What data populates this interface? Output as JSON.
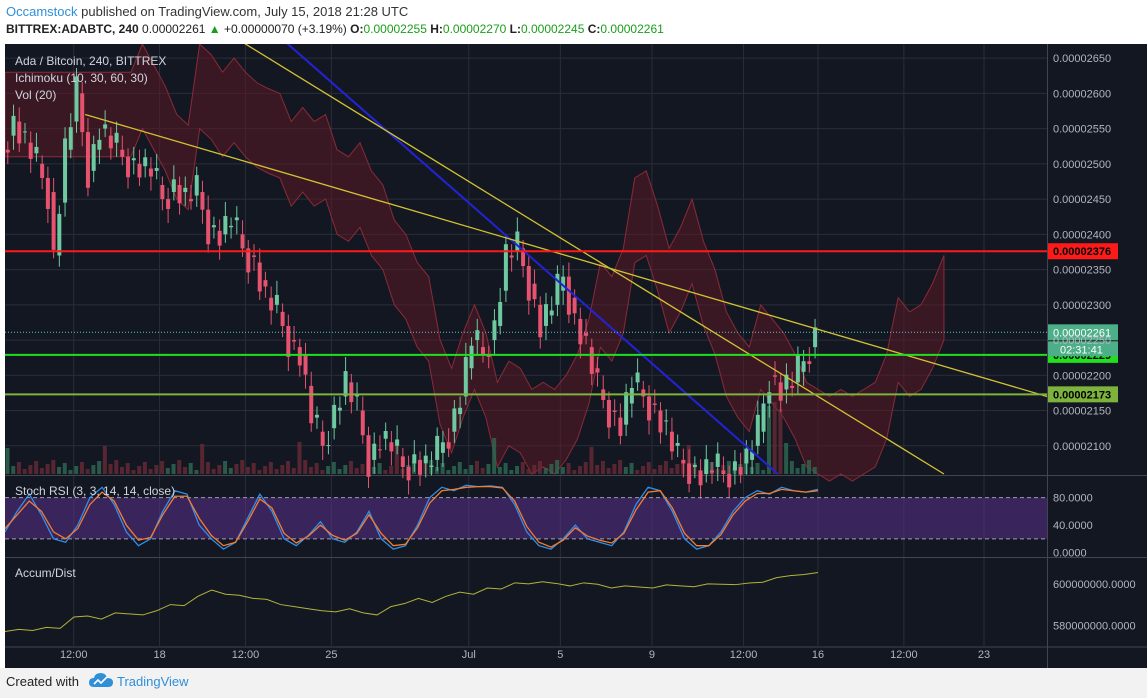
{
  "header": {
    "author": "Occamstock",
    "published_text": " published on TradingView.com, July 15, 2018 21:28 UTC",
    "symbol": "BITTREX:ADABTC, 240",
    "last": "0.00002261",
    "change": "+0.00000070 (+3.19%)",
    "o_label": "O:",
    "o": "0.00002255",
    "h_label": "H:",
    "h": "0.00002270",
    "l_label": "L:",
    "l": "0.00002245",
    "c_label": "C:",
    "c": "0.00002261"
  },
  "legend": {
    "pair": "Ada / Bitcoin, 240, BITTREX",
    "ichimoku": "Ichimoku (10, 30, 60, 30)",
    "vol": "Vol (20)",
    "stoch": "Stoch RSI (3, 3, 14, 14, close)",
    "accum": "Accum/Dist"
  },
  "colors": {
    "background": "#131722",
    "grid": "#2a2e39",
    "up_candle": "#6ec8a0",
    "down_candle": "#e7536f",
    "red_level": "#ff1a1a",
    "green_level": "#20e020",
    "olive_level": "#7db33c",
    "trendline_yellow": "#d4c232",
    "trendline_blue": "#2323d6",
    "stoch_k": "#2f8fea",
    "stoch_d": "#f57c30",
    "stoch_band": "#5b2f8c",
    "accum_line": "#b5b23a"
  },
  "footer": {
    "created_with": "Created with",
    "brand": "TradingView",
    "brand_icon": "tradingview-cloud-icon"
  },
  "chart_data": [
    {
      "type": "candlestick",
      "title": "Ada / Bitcoin, 240, BITTREX",
      "y_range": [
        2.06e-05,
        2.67e-05
      ],
      "y_ticks": [
        "0.00002650",
        "0.00002600",
        "0.00002550",
        "0.00002500",
        "0.00002450",
        "0.00002400",
        "0.00002350",
        "0.00002300",
        "0.00002250",
        "0.00002200",
        "0.00002150",
        "0.00002100"
      ],
      "y_tick_values": [
        2.65e-05,
        2.6e-05,
        2.55e-05,
        2.5e-05,
        2.45e-05,
        2.4e-05,
        2.35e-05,
        2.3e-05,
        2.25e-05,
        2.2e-05,
        2.15e-05,
        2.1e-05
      ],
      "x_ticks": [
        "12:00",
        "18",
        "12:00",
        "25",
        "Jul",
        "5",
        "9",
        "12:00",
        "16",
        "12:00",
        "23"
      ],
      "x_tick_index": [
        12,
        27,
        42,
        57,
        81,
        97,
        113,
        129,
        142,
        157,
        171
      ],
      "x_range": [
        0,
        182
      ],
      "current_price_label": "0.00002261",
      "countdown_label": "02:31:41",
      "levels": [
        {
          "label": "0.00002376",
          "value": 2.376e-05,
          "color": "#ff1a1a"
        },
        {
          "label": "0.00002229",
          "value": 2.229e-05,
          "color": "#20e020"
        },
        {
          "label": "0.00002173",
          "value": 2.173e-05,
          "color": "#7db33c"
        }
      ],
      "current_price_value": 2.261e-05,
      "trendlines": [
        {
          "color": "#2323d6",
          "from": [
            48,
            2.68e-05
          ],
          "to": [
            135,
            2.06e-05
          ]
        },
        {
          "color": "#d4c232",
          "from": [
            40,
            2.68e-05
          ],
          "to": [
            164,
            2.06e-05
          ]
        },
        {
          "color": "#d4c232",
          "from": [
            14,
            2.57e-05
          ],
          "to": [
            182,
            2.17e-05
          ]
        }
      ],
      "close_path": [
        [
          0,
          2.52e-05
        ],
        [
          2,
          2.56e-05
        ],
        [
          4,
          2.53e-05
        ],
        [
          6,
          2.5e-05
        ],
        [
          8,
          2.46e-05
        ],
        [
          9,
          2.37e-05
        ],
        [
          11,
          2.52e-05
        ],
        [
          13,
          2.6e-05
        ],
        [
          15,
          2.49e-05
        ],
        [
          17,
          2.55e-05
        ],
        [
          19,
          2.53e-05
        ],
        [
          21,
          2.51e-05
        ],
        [
          23,
          2.5e-05
        ],
        [
          26,
          2.49e-05
        ],
        [
          28,
          2.45e-05
        ],
        [
          30,
          2.47e-05
        ],
        [
          32,
          2.45e-05
        ],
        [
          34,
          2.46e-05
        ],
        [
          36,
          2.41e-05
        ],
        [
          38,
          2.4e-05
        ],
        [
          40,
          2.42e-05
        ],
        [
          42,
          2.38e-05
        ],
        [
          44,
          2.36e-05
        ],
        [
          46,
          2.31e-05
        ],
        [
          48,
          2.29e-05
        ],
        [
          50,
          2.25e-05
        ],
        [
          52,
          2.23e-05
        ],
        [
          54,
          2.14e-05
        ],
        [
          56,
          2.1e-05
        ],
        [
          58,
          2.15e-05
        ],
        [
          60,
          2.19e-05
        ],
        [
          62,
          2.15e-05
        ],
        [
          64,
          2.08e-05
        ],
        [
          66,
          2.11e-05
        ],
        [
          68,
          2.1e-05
        ],
        [
          70,
          2.07e-05
        ],
        [
          72,
          2.08e-05
        ],
        [
          74,
          2.07e-05
        ],
        [
          76,
          2.09e-05
        ],
        [
          78,
          2.12e-05
        ],
        [
          80,
          2.17e-05
        ],
        [
          82,
          2.25e-05
        ],
        [
          84,
          2.23e-05
        ],
        [
          86,
          2.27e-05
        ],
        [
          88,
          2.37e-05
        ],
        [
          90,
          2.38e-05
        ],
        [
          92,
          2.33e-05
        ],
        [
          94,
          2.27e-05
        ],
        [
          96,
          2.3e-05
        ],
        [
          98,
          2.34e-05
        ],
        [
          100,
          2.28e-05
        ],
        [
          102,
          2.24e-05
        ],
        [
          104,
          2.18e-05
        ],
        [
          106,
          2.15e-05
        ],
        [
          108,
          2.13e-05
        ],
        [
          110,
          2.19e-05
        ],
        [
          112,
          2.17e-05
        ],
        [
          114,
          2.15e-05
        ],
        [
          116,
          2.12e-05
        ],
        [
          118,
          2.08e-05
        ],
        [
          120,
          2.07e-05
        ],
        [
          122,
          2.06e-05
        ],
        [
          124,
          2.07e-05
        ],
        [
          126,
          2.06e-05
        ],
        [
          128,
          2.07e-05
        ],
        [
          130,
          2.08e-05
        ],
        [
          132,
          2.12e-05
        ],
        [
          134,
          2.2e-05
        ],
        [
          136,
          2.18e-05
        ],
        [
          138,
          2.19e-05
        ],
        [
          140,
          2.22e-05
        ],
        [
          142,
          2.26e-05
        ]
      ]
    },
    {
      "type": "line",
      "title": "Stoch RSI (3, 3, 14, 14, close)",
      "y_range": [
        -5,
        110
      ],
      "y_ticks": [
        "80.0000",
        "40.0000",
        "0.0000"
      ],
      "y_tick_values": [
        80,
        40,
        0
      ],
      "band": [
        20,
        80
      ],
      "series": [
        {
          "name": "",
          "color": "#2f8fea",
          "values": [
            30,
            60,
            85,
            55,
            20,
            15,
            40,
            80,
            95,
            70,
            30,
            10,
            20,
            60,
            90,
            85,
            40,
            20,
            5,
            15,
            50,
            85,
            60,
            20,
            10,
            25,
            45,
            20,
            15,
            30,
            60,
            20,
            5,
            10,
            40,
            80,
            95,
            90,
            98,
            96,
            97,
            95,
            70,
            30,
            10,
            5,
            20,
            40,
            20,
            15,
            10,
            30,
            70,
            95,
            90,
            60,
            20,
            5,
            10,
            30,
            60,
            80,
            90,
            85,
            95,
            90,
            88,
            92
          ]
        },
        {
          "name": "",
          "color": "#f57c30",
          "values": [
            35,
            55,
            75,
            60,
            30,
            20,
            35,
            70,
            88,
            75,
            40,
            18,
            22,
            55,
            82,
            82,
            50,
            25,
            10,
            15,
            45,
            78,
            65,
            28,
            14,
            24,
            40,
            25,
            18,
            28,
            55,
            28,
            10,
            12,
            36,
            72,
            90,
            92,
            95,
            96,
            96,
            94,
            75,
            38,
            15,
            8,
            18,
            36,
            24,
            18,
            14,
            28,
            62,
            88,
            90,
            65,
            28,
            10,
            10,
            26,
            55,
            75,
            86,
            86,
            92,
            90,
            88,
            90
          ]
        }
      ]
    },
    {
      "type": "line",
      "title": "Accum/Dist",
      "y_range": [
        570000000,
        612000000
      ],
      "y_ticks": [
        "600000000.0000",
        "580000000.0000"
      ],
      "y_tick_values": [
        600000000,
        580000000
      ],
      "series": [
        {
          "name": "",
          "color": "#b5b23a",
          "values": [
            577000000,
            578000000,
            577500000,
            579000000,
            578500000,
            584000000,
            584500000,
            583000000,
            586000000,
            585500000,
            585000000,
            587000000,
            590000000,
            589500000,
            594000000,
            597000000,
            595000000,
            594500000,
            593000000,
            592500000,
            590000000,
            589000000,
            588000000,
            587000000,
            586500000,
            588000000,
            586000000,
            585000000,
            589000000,
            590500000,
            593000000,
            591000000,
            594000000,
            596000000,
            595000000,
            598000000,
            597500000,
            600500000,
            600000000,
            601000000,
            600200000,
            599000000,
            600500000,
            599800000,
            598000000,
            599000000,
            598500000,
            598000000,
            599500000,
            599000000,
            598600000,
            600000000,
            599800000,
            599600000,
            600400000,
            600800000,
            603000000,
            604000000,
            604500000,
            605500000
          ]
        }
      ]
    }
  ]
}
